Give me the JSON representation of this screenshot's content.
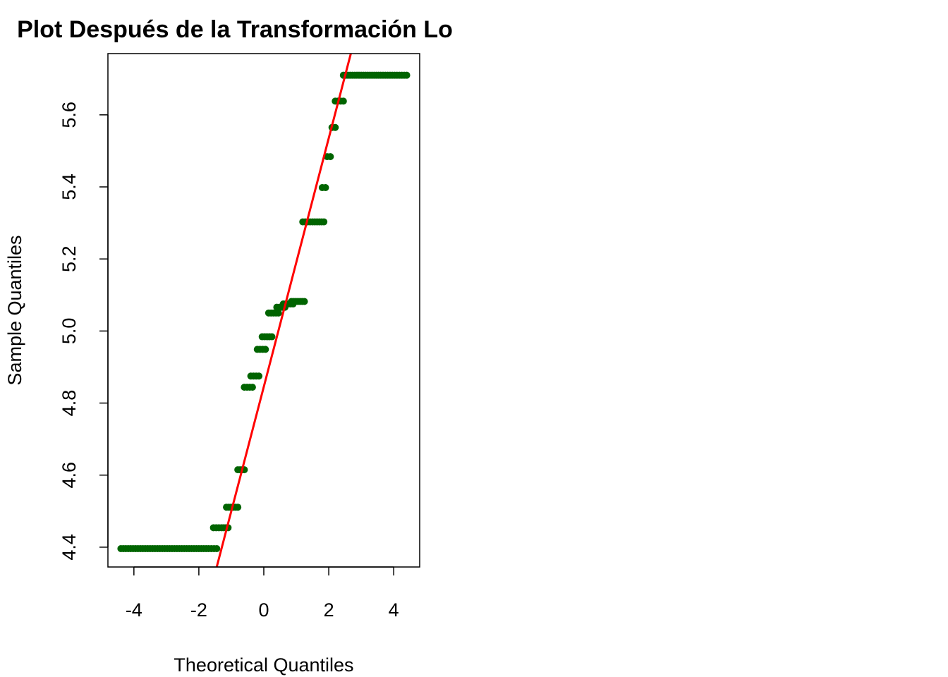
{
  "chart_data": {
    "type": "scatter",
    "title": "Plot Después de la Transformación Lo",
    "xlabel": "Theoretical Quantiles",
    "ylabel": "Sample Quantiles",
    "xlim": [
      -4.8,
      4.8
    ],
    "ylim": [
      4.345,
      5.77
    ],
    "x_ticks": [
      -4,
      -2,
      0,
      2,
      4
    ],
    "x_tick_labels": [
      "-4",
      "-2",
      "0",
      "2",
      "4"
    ],
    "y_ticks": [
      4.4,
      4.6,
      4.8,
      5.0,
      5.2,
      5.4,
      5.6
    ],
    "y_tick_labels": [
      "4.4",
      "4.6",
      "4.8",
      "5.0",
      "5.2",
      "5.4",
      "5.6"
    ],
    "grid": false,
    "point_color": "#006400",
    "line_color": "#ff0000",
    "reference_line": {
      "x": [
        -1.45,
        2.68
      ],
      "y": [
        4.345,
        5.77
      ]
    },
    "series": [
      {
        "points": [
          {
            "x": -4.4,
            "y": 4.396
          },
          {
            "x": -4.1,
            "y": 4.396
          },
          {
            "x": -3.8,
            "y": 4.396
          },
          {
            "x": -3.5,
            "y": 4.396
          },
          {
            "x": -3.2,
            "y": 4.396
          },
          {
            "x": -2.9,
            "y": 4.396
          },
          {
            "x": -2.6,
            "y": 4.396
          },
          {
            "x": -2.3,
            "y": 4.396
          },
          {
            "x": -2.0,
            "y": 4.396
          },
          {
            "x": -1.7,
            "y": 4.396
          },
          {
            "x": -1.45,
            "y": 4.396
          },
          {
            "x": -1.55,
            "y": 4.454
          },
          {
            "x": -1.3,
            "y": 4.454
          },
          {
            "x": -1.1,
            "y": 4.454
          },
          {
            "x": -1.15,
            "y": 4.511
          },
          {
            "x": -0.8,
            "y": 4.511
          },
          {
            "x": -0.8,
            "y": 4.615
          },
          {
            "x": -0.6,
            "y": 4.615
          },
          {
            "x": -0.6,
            "y": 4.844
          },
          {
            "x": -0.35,
            "y": 4.844
          },
          {
            "x": -0.4,
            "y": 4.875
          },
          {
            "x": -0.15,
            "y": 4.875
          },
          {
            "x": -0.2,
            "y": 4.949
          },
          {
            "x": 0.05,
            "y": 4.949
          },
          {
            "x": -0.05,
            "y": 4.984
          },
          {
            "x": 0.25,
            "y": 4.984
          },
          {
            "x": 0.15,
            "y": 5.05
          },
          {
            "x": 0.45,
            "y": 5.05
          },
          {
            "x": 0.4,
            "y": 5.066
          },
          {
            "x": 0.65,
            "y": 5.066
          },
          {
            "x": 0.6,
            "y": 5.075
          },
          {
            "x": 0.9,
            "y": 5.075
          },
          {
            "x": 0.85,
            "y": 5.082
          },
          {
            "x": 1.25,
            "y": 5.082
          },
          {
            "x": 1.2,
            "y": 5.303
          },
          {
            "x": 1.5,
            "y": 5.303
          },
          {
            "x": 1.85,
            "y": 5.303
          },
          {
            "x": 1.8,
            "y": 5.398
          },
          {
            "x": 1.9,
            "y": 5.398
          },
          {
            "x": 1.95,
            "y": 5.484
          },
          {
            "x": 2.05,
            "y": 5.484
          },
          {
            "x": 2.1,
            "y": 5.565
          },
          {
            "x": 2.2,
            "y": 5.565
          },
          {
            "x": 2.2,
            "y": 5.638
          },
          {
            "x": 2.45,
            "y": 5.638
          },
          {
            "x": 2.45,
            "y": 5.71
          },
          {
            "x": 2.8,
            "y": 5.71
          },
          {
            "x": 3.2,
            "y": 5.71
          },
          {
            "x": 3.6,
            "y": 5.71
          },
          {
            "x": 4.1,
            "y": 5.71
          },
          {
            "x": 4.4,
            "y": 5.71
          }
        ]
      }
    ]
  }
}
